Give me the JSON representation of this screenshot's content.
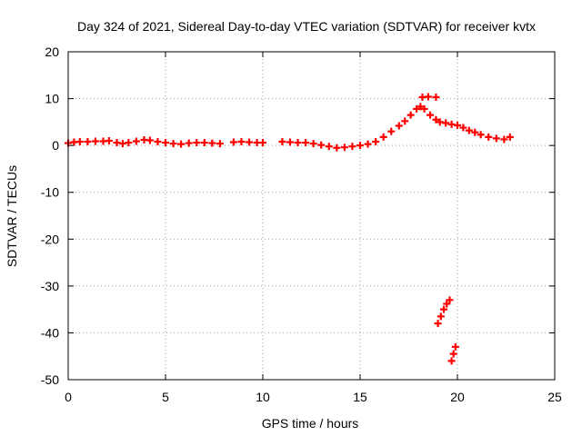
{
  "chart_data": {
    "type": "scatter",
    "title": "Day 324 of 2021, Sidereal Day-to-day VTEC variation (SDTVAR) for receiver kvtx",
    "xlabel": "GPS time / hours",
    "ylabel": "SDTVAR / TECUs",
    "xlim": [
      0,
      25
    ],
    "ylim": [
      -50,
      20
    ],
    "x_ticks": [
      0,
      5,
      10,
      15,
      20,
      25
    ],
    "y_ticks": [
      -50,
      -40,
      -30,
      -20,
      -10,
      0,
      10,
      20
    ],
    "x_tick_labels": [
      "0",
      "5",
      "10",
      "15",
      "20",
      "25"
    ],
    "y_tick_labels": [
      "-50",
      "-40",
      "-30",
      "-20",
      "-10",
      "0",
      "10",
      "20"
    ],
    "grid": true,
    "legend": "none",
    "marker": "+",
    "color": "#ff0000",
    "series": [
      {
        "name": "SDTVAR",
        "x": [
          0.0,
          0.3,
          0.6,
          1.0,
          1.4,
          1.8,
          2.1,
          2.5,
          2.8,
          3.1,
          3.5,
          3.9,
          4.2,
          4.6,
          5.0,
          5.4,
          5.8,
          6.2,
          6.6,
          7.0,
          7.4,
          7.8,
          8.5,
          8.9,
          9.3,
          9.7,
          10.0,
          11.0,
          11.4,
          11.8,
          12.2,
          12.6,
          13.0,
          13.4,
          13.8,
          14.2,
          14.6,
          15.0,
          15.4,
          15.8,
          16.2,
          16.6,
          17.0,
          17.3,
          17.6,
          17.9,
          18.1,
          18.3,
          18.6,
          18.9,
          19.1,
          19.4,
          19.7,
          20.0,
          20.3,
          20.6,
          20.9,
          21.2,
          21.6,
          22.0,
          22.4,
          22.7,
          18.2,
          18.5,
          18.9,
          19.0,
          19.15,
          19.3,
          19.45,
          19.6,
          19.7,
          19.8,
          19.9
        ],
        "y": [
          0.5,
          0.7,
          0.8,
          0.8,
          0.9,
          0.9,
          1.0,
          0.6,
          0.4,
          0.6,
          0.9,
          1.2,
          1.1,
          0.8,
          0.6,
          0.4,
          0.3,
          0.5,
          0.6,
          0.6,
          0.5,
          0.4,
          0.7,
          0.8,
          0.7,
          0.6,
          0.6,
          0.8,
          0.7,
          0.6,
          0.6,
          0.4,
          0.1,
          -0.2,
          -0.5,
          -0.4,
          -0.2,
          0.0,
          0.3,
          0.8,
          1.8,
          3.0,
          4.2,
          5.2,
          6.5,
          7.8,
          8.3,
          7.8,
          6.5,
          5.5,
          5.0,
          4.8,
          4.5,
          4.3,
          3.8,
          3.2,
          2.8,
          2.3,
          1.8,
          1.5,
          1.3,
          1.8,
          10.3,
          10.4,
          10.3,
          -38.0,
          -36.5,
          -35.0,
          -33.8,
          -33.0,
          -46.0,
          -44.5,
          -43.0
        ]
      }
    ]
  }
}
